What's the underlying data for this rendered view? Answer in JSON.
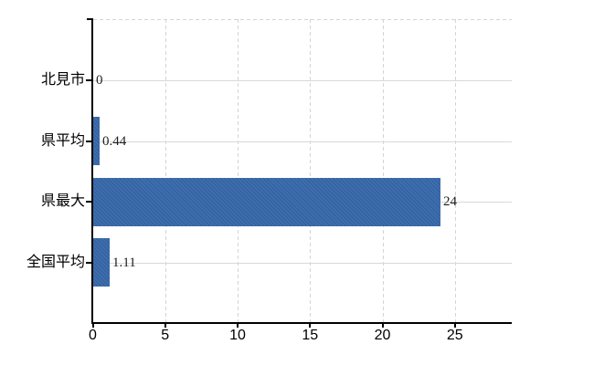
{
  "chart_data": {
    "type": "bar",
    "orientation": "horizontal",
    "title": "",
    "xlabel": "",
    "ylabel": "",
    "categories": [
      "北見市",
      "県平均",
      "県最大",
      "全国平均"
    ],
    "values": [
      0,
      0.44,
      24,
      1.11
    ],
    "value_labels": [
      "0",
      "0.44",
      "24",
      "1.11"
    ],
    "x_ticks": [
      0,
      5,
      10,
      15,
      20,
      25
    ],
    "x_tick_labels": [
      "0",
      "5",
      "10",
      "15",
      "20",
      "25"
    ],
    "xlim": [
      0,
      28.9
    ],
    "grid": true,
    "legend": false,
    "bar_color": "#3d6ead"
  },
  "colors": {
    "bar": "#3d6ead",
    "bar_dither": "#345f9e",
    "axis": "#000000",
    "h_gridline": "#d6dbd6",
    "v_gridline": "#d6d2db",
    "background": "#ffffff",
    "value_text": "#1e1e1e",
    "label_text": "#000000"
  }
}
